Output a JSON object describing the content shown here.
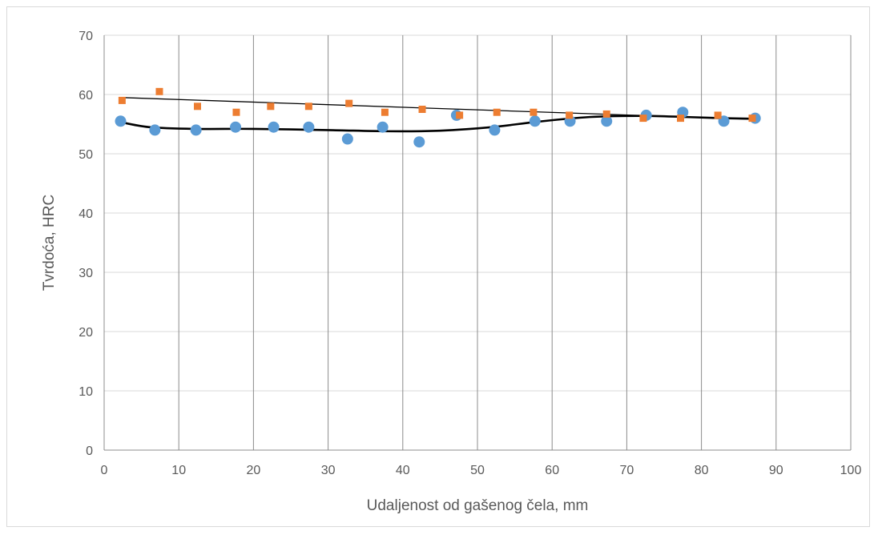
{
  "chart_data": {
    "type": "scatter",
    "title": "",
    "xlabel": "Udaljenost od gašenog čela, mm",
    "ylabel": "Tvrdoća, HRC",
    "xlim": [
      0,
      100
    ],
    "ylim": [
      0,
      70
    ],
    "xticks": [
      "0",
      "10",
      "20",
      "30",
      "40",
      "50",
      "60",
      "70",
      "80",
      "90",
      "100"
    ],
    "yticks": [
      "0",
      "10",
      "20",
      "30",
      "40",
      "50",
      "60",
      "70"
    ],
    "grid": true,
    "legend": "none",
    "series": [
      {
        "marker": "circle",
        "color": "#5b9bd5",
        "x": [
          2.2,
          6.8,
          12.3,
          17.6,
          22.7,
          27.4,
          32.6,
          37.3,
          42.2,
          47.2,
          52.3,
          57.7,
          62.4,
          67.3,
          72.6,
          77.5,
          83.0,
          87.2
        ],
        "y": [
          55.5,
          54.0,
          54.0,
          54.5,
          54.5,
          54.5,
          52.5,
          54.5,
          52.0,
          56.5,
          54.0,
          55.5,
          55.5,
          55.5,
          56.5,
          57.0,
          55.5,
          56.0
        ],
        "trendline": {
          "kind": "polynomial",
          "color": "#000000",
          "points": [
            [
              2,
              55.4
            ],
            [
              6,
              54.5
            ],
            [
              12,
              54.2
            ],
            [
              20,
              54.2
            ],
            [
              30,
              54.0
            ],
            [
              38,
              53.8
            ],
            [
              45,
              53.9
            ],
            [
              52,
              54.5
            ],
            [
              58,
              55.4
            ],
            [
              65,
              56.2
            ],
            [
              72,
              56.4
            ],
            [
              78,
              56.2
            ],
            [
              83,
              56.0
            ],
            [
              87.2,
              55.9
            ]
          ]
        }
      },
      {
        "marker": "square",
        "color": "#ed7d31",
        "x": [
          2.4,
          7.4,
          12.5,
          17.7,
          22.3,
          27.4,
          32.8,
          37.6,
          42.6,
          47.6,
          52.6,
          57.5,
          62.3,
          67.3,
          72.2,
          77.2,
          82.2,
          86.8
        ],
        "y": [
          59.0,
          60.5,
          58.0,
          57.0,
          58.0,
          58.0,
          58.5,
          57.0,
          57.5,
          56.5,
          57.0,
          57.0,
          56.5,
          56.7,
          56.0,
          56.0,
          56.5,
          56.0
        ],
        "trendline": {
          "kind": "linear",
          "color": "#000000",
          "points": [
            [
              2,
              59.5
            ],
            [
              87.2,
              55.8
            ]
          ]
        }
      }
    ]
  }
}
